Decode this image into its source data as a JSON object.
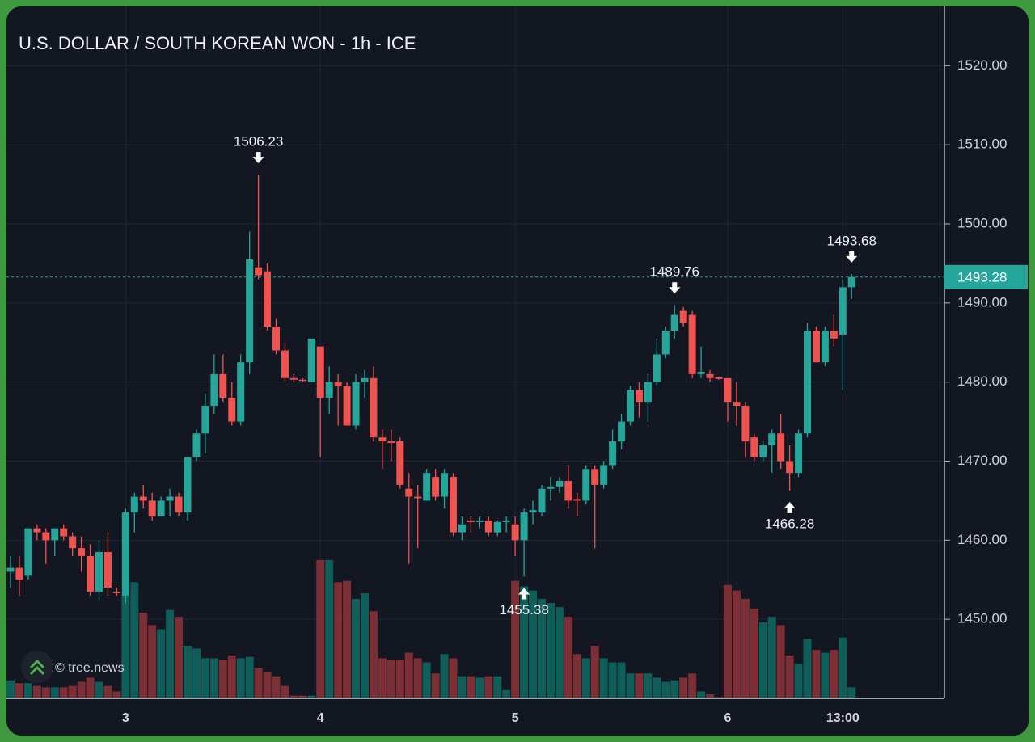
{
  "chart_data": {
    "type": "candlestick",
    "title": "U.S. DOLLAR / SOUTH KOREAN WON - 1h - ICE",
    "watermark": "© tree.news",
    "categories": [
      null,
      null,
      null,
      null,
      null,
      null,
      null,
      null,
      null,
      null,
      null,
      null,
      null,
      "3",
      null,
      null,
      null,
      null,
      null,
      null,
      null,
      null,
      null,
      null,
      null,
      null,
      null,
      null,
      null,
      null,
      null,
      null,
      null,
      null,
      null,
      "4",
      null,
      null,
      null,
      null,
      null,
      null,
      null,
      null,
      null,
      null,
      null,
      null,
      null,
      null,
      null,
      null,
      null,
      null,
      null,
      null,
      null,
      "5",
      null,
      null,
      null,
      null,
      null,
      null,
      null,
      null,
      null,
      null,
      null,
      null,
      null,
      null,
      null,
      null,
      null,
      null,
      null,
      null,
      null,
      null,
      null,
      "6",
      null,
      null,
      null,
      null,
      null,
      null,
      null,
      null,
      null,
      null,
      null,
      null,
      "13:00",
      null
    ],
    "open": [
      1456,
      1456.5,
      1455.5,
      1461.5,
      1461,
      1460,
      1461.5,
      1460.5,
      1459,
      1458,
      1453.5,
      1458.5,
      1453.5,
      1453,
      1463.5,
      1465.5,
      1465,
      1463,
      1465,
      1465.5,
      1463.5,
      1470.5,
      1473.5,
      1477,
      1481,
      1478,
      1475,
      1482.5,
      1494.5,
      1494,
      1487,
      1484,
      1480.5,
      1480.3,
      1480,
      1484.5,
      1478,
      1480,
      1479.5,
      1474.5,
      1480,
      1480.5,
      1473,
      1472.5,
      1472.5,
      1466.5,
      1465.5,
      1465,
      1468,
      1465.5,
      1468,
      1461,
      1462.5,
      1462.3,
      1462.5,
      1461,
      1462.3,
      1462,
      1460,
      1463.5,
      1463.5,
      1466.5,
      1466.8,
      1467.5,
      1465.2,
      1465,
      1469,
      1467,
      1469.5,
      1472.5,
      1475,
      1479,
      1477.5,
      1480,
      1483.5,
      1486.5,
      1489,
      1488.5,
      1481,
      1481,
      1480.6,
      1480.5,
      1477.5,
      1477,
      1473,
      1470.5,
      1472,
      1473.5,
      1470,
      1468.5,
      1473.5,
      1486.5,
      1482.5,
      1486.5,
      1486,
      1492
    ],
    "high": [
      1458,
      1458,
      1461.5,
      1462,
      1461.5,
      1461.5,
      1462,
      1461,
      1460.5,
      1459.5,
      1460,
      1461,
      1454,
      1464,
      1466,
      1467,
      1466,
      1465.5,
      1466.5,
      1466,
      1470.5,
      1474,
      1478.5,
      1483.5,
      1483.5,
      1480,
      1483.5,
      1499,
      1506.23,
      1495,
      1488,
      1485,
      1481,
      1480.5,
      1485.5,
      1484.5,
      1482,
      1481,
      1480,
      1481,
      1481.5,
      1482,
      1474,
      1474,
      1473,
      1468.5,
      1467,
      1469,
      1469,
      1469,
      1468.5,
      1463,
      1463,
      1463,
      1463,
      1462.5,
      1463,
      1463,
      1464,
      1465,
      1467,
      1468,
      1468,
      1469.5,
      1466,
      1469.5,
      1469.5,
      1470,
      1474,
      1476,
      1479.5,
      1480,
      1481,
      1485.5,
      1487,
      1489.76,
      1489.5,
      1489,
      1484.5,
      1481.5,
      1480.7,
      1480.5,
      1480,
      1477.5,
      1473.5,
      1472.5,
      1474,
      1476,
      1472,
      1474,
      1487.5,
      1487,
      1487,
      1488.5,
      1493,
      1493.68
    ],
    "low": [
      1454,
      1453,
      1455,
      1460,
      1457,
      1458,
      1460,
      1458,
      1456,
      1453,
      1452.5,
      1453,
      1453,
      1452,
      1461,
      1464,
      1462.5,
      1463,
      1463,
      1463,
      1462.5,
      1470,
      1471,
      1476,
      1477.5,
      1474.5,
      1474.5,
      1481,
      1493,
      1486.5,
      1483.5,
      1480,
      1480,
      1480,
      1480,
      1470.5,
      1476,
      1474.5,
      1474.5,
      1474,
      1478,
      1472.5,
      1469,
      1470,
      1466.5,
      1457,
      1459,
      1465,
      1465,
      1464,
      1460.5,
      1460,
      1461,
      1461.5,
      1460.5,
      1460.5,
      1461,
      1458,
      1455.38,
      1462,
      1463,
      1465,
      1466,
      1464,
      1463,
      1464.5,
      1459,
      1466.5,
      1469,
      1471.5,
      1474.5,
      1475.5,
      1475,
      1479.5,
      1483,
      1485.5,
      1487,
      1480.5,
      1480.5,
      1480,
      1480.3,
      1475,
      1474.5,
      1470.5,
      1470,
      1470,
      1468.5,
      1469,
      1466.28,
      1468,
      1473,
      1482.5,
      1482,
      1484.5,
      1479,
      1490.5
    ],
    "close": [
      1456.5,
      1455,
      1461.5,
      1461,
      1460,
      1461.5,
      1460.5,
      1459,
      1458,
      1453.5,
      1458.5,
      1454,
      1453.3,
      1463.5,
      1465.5,
      1465,
      1463,
      1465,
      1465.5,
      1463.5,
      1470.5,
      1473.5,
      1477,
      1481,
      1478,
      1475,
      1482.5,
      1495.5,
      1493.5,
      1487,
      1484,
      1480.5,
      1480.3,
      1480.2,
      1485.5,
      1478,
      1480,
      1479.5,
      1474.5,
      1480,
      1480.5,
      1473,
      1472.5,
      1472.3,
      1467,
      1465.5,
      1465.3,
      1468.5,
      1465.5,
      1468.5,
      1461,
      1462,
      1462.3,
      1462.5,
      1461,
      1462.3,
      1462.5,
      1460,
      1463.5,
      1463.8,
      1466.5,
      1466.8,
      1467.5,
      1465,
      1465,
      1469,
      1467,
      1469.5,
      1472.5,
      1475,
      1479,
      1477.5,
      1480,
      1483.5,
      1486.5,
      1488.5,
      1487.5,
      1481,
      1481.3,
      1480.5,
      1480.4,
      1477.5,
      1477,
      1472.5,
      1470.5,
      1472,
      1473.5,
      1470,
      1468.5,
      1473.5,
      1486.5,
      1482.5,
      1486.5,
      1485.5,
      1492,
      1493.28
    ],
    "volume": [
      13,
      11,
      11,
      9,
      8,
      8,
      8,
      9,
      12,
      15,
      12,
      9,
      5,
      75,
      84,
      62,
      53,
      50,
      64,
      59,
      38,
      36,
      29,
      29,
      28,
      31,
      29,
      30,
      22,
      19,
      16,
      9,
      2,
      2,
      2,
      100,
      100,
      84,
      85,
      72,
      76,
      63,
      29,
      28,
      28,
      33,
      29,
      26,
      18,
      32,
      29,
      16,
      16,
      15,
      16,
      16,
      6,
      85,
      81,
      78,
      72,
      69,
      66,
      59,
      32,
      29,
      38,
      29,
      26,
      26,
      18,
      18,
      18,
      15,
      12,
      13,
      15,
      18,
      5,
      3,
      1,
      82,
      78,
      72,
      65,
      55,
      59,
      53,
      31,
      25,
      43,
      35,
      33,
      35,
      44,
      8
    ],
    "up_color": "#26a69a",
    "down_color": "#ef5350",
    "up_volume_color": "#0f5e59",
    "down_volume_color": "#7c2f35",
    "markers": [
      {
        "value": 1506.23,
        "direction": "down"
      },
      {
        "value": 1489.76,
        "direction": "down"
      },
      {
        "value": 1455.38,
        "direction": "up"
      },
      {
        "value": 1466.28,
        "direction": "up"
      },
      {
        "value": 1493.68,
        "direction": "down"
      }
    ],
    "ylim": [
      1440,
      1527.5
    ],
    "yticks": [
      {
        "value": 1450,
        "label": "1450.00"
      },
      {
        "value": 1460,
        "label": "1460.00"
      },
      {
        "value": 1470,
        "label": "1470.00"
      },
      {
        "value": 1480,
        "label": "1480.00"
      },
      {
        "value": 1490,
        "label": "1490.00"
      },
      {
        "value": 1500,
        "label": "1500.00"
      },
      {
        "value": 1510,
        "label": "1510.00"
      },
      {
        "value": 1520,
        "label": "1520.00"
      }
    ],
    "grid": true
  }
}
